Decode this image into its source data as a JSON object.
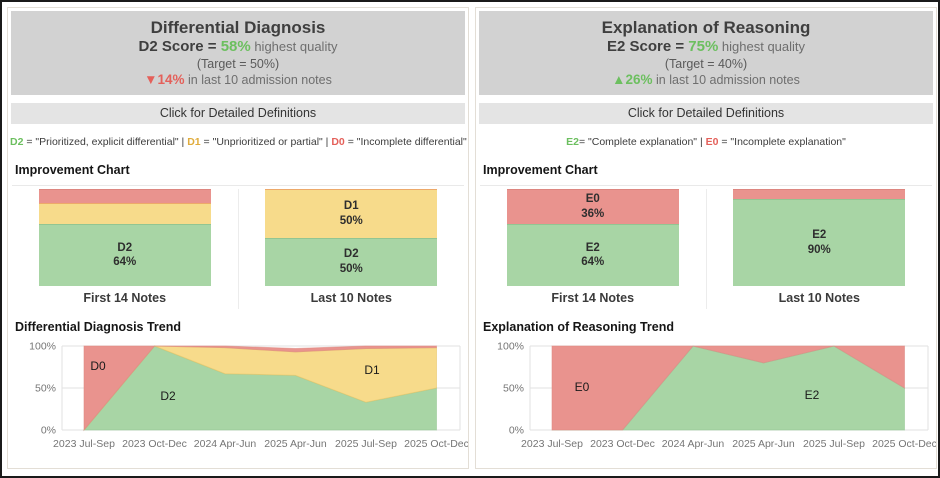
{
  "colors": {
    "green_fill": "#a8d5a5",
    "yellow_fill": "#f7db8b",
    "red_fill": "#e9938e",
    "green_text": "#6cbf5f",
    "gold_text": "#e0ac3c",
    "red_text": "#e4605a",
    "header_bg": "#d2d2d2",
    "button_bg": "#e4e4e4"
  },
  "panels": [
    {
      "header": {
        "title": "Differential Diagnosis",
        "score_label": "D2 Score = ",
        "score_value": "58%",
        "score_value_color": "#6cbf5f",
        "score_note": " highest quality",
        "target": "(Target = 50%)",
        "delta_arrow": "▼",
        "delta_value": "14%",
        "delta_color": "#e4605a",
        "delta_note": " in last 10 admission notes"
      },
      "definitions_button": "Click for Detailed Definitions",
      "definition_parts": [
        {
          "text": "D2",
          "color": "#6cbf5f"
        },
        {
          "text": " = \"Prioritized, explicit differential\"  | ",
          "color": "#3c3c3c"
        },
        {
          "text": "D1",
          "color": "#e0ac3c"
        },
        {
          "text": " = \"Unprioritized or partial\" | ",
          "color": "#3c3c3c"
        },
        {
          "text": "D0",
          "color": "#e4605a"
        },
        {
          "text": " = \"Incomplete differential\"",
          "color": "#3c3c3c"
        }
      ],
      "improvement_title": "Improvement Chart",
      "trend_title": "Differential Diagnosis Trend"
    },
    {
      "header": {
        "title": "Explanation of Reasoning",
        "score_label": "E2 Score = ",
        "score_value": "75%",
        "score_value_color": "#6cbf5f",
        "score_note": " highest quality",
        "target": "(Target = 40%)",
        "delta_arrow": "▲",
        "delta_value": "26%",
        "delta_color": "#6cbf5f",
        "delta_note": " in last 10 admission notes"
      },
      "definitions_button": "Click for Detailed Definitions",
      "definition_parts": [
        {
          "text": "E2",
          "color": "#6cbf5f"
        },
        {
          "text": "= \"Complete explanation\" | ",
          "color": "#3c3c3c"
        },
        {
          "text": "E0",
          "color": "#e4605a"
        },
        {
          "text": " = \"Incomplete explanation\"",
          "color": "#3c3c3c"
        }
      ],
      "improvement_title": "Improvement Chart",
      "trend_title": "Explanation of Reasoning Trend"
    }
  ],
  "chart_data": [
    {
      "id": "dd-improvement",
      "type": "bar",
      "stacked": true,
      "unit": "%",
      "categories": [
        "First 14 Notes",
        "Last 10 Notes"
      ],
      "series": [
        {
          "name": "D2",
          "color": "#a8d5a5",
          "edge": "#92c592",
          "values": [
            64,
            50
          ],
          "show_labels": [
            true,
            true
          ]
        },
        {
          "name": "D1",
          "color": "#f7db8b",
          "edge": "#eda96a",
          "values": [
            22,
            50
          ],
          "show_labels": [
            false,
            true
          ]
        },
        {
          "name": "D0",
          "color": "#e9938e",
          "edge": "#dd8680",
          "values": [
            14,
            0
          ],
          "show_labels": [
            false,
            false
          ]
        }
      ]
    },
    {
      "id": "dd-trend",
      "type": "area",
      "stacked": true,
      "title": "Differential Diagnosis Trend",
      "categories": [
        "2023 Jul-Sep",
        "2023 Oct-Dec",
        "2024 Apr-Jun",
        "2025 Apr-Jun",
        "2025 Jul-Sep",
        "2025 Oct-Dec"
      ],
      "ylim": [
        0,
        100
      ],
      "yticks": [
        "0%",
        "50%",
        "100%"
      ],
      "grid": true,
      "series": [
        {
          "name": "D2",
          "color": "#a8d5a5",
          "edge": "#92c592",
          "values": [
            0,
            100,
            67,
            65,
            33,
            50
          ]
        },
        {
          "name": "D1",
          "color": "#f7db8b",
          "edge": "#e8c260",
          "values": [
            0,
            0,
            31,
            28,
            64,
            48
          ]
        },
        {
          "name": "D0",
          "color": "#e9938e",
          "edge": "#dd8680",
          "values": [
            100,
            0,
            2,
            4,
            3,
            2
          ]
        }
      ],
      "annotations": [
        {
          "text": "D0",
          "x": 88,
          "y": 32
        },
        {
          "text": "D2",
          "x": 158,
          "y": 62
        },
        {
          "text": "D1",
          "x": 362,
          "y": 36
        }
      ]
    },
    {
      "id": "er-improvement",
      "type": "bar",
      "stacked": true,
      "unit": "%",
      "categories": [
        "First 14 Notes",
        "Last 10 Notes"
      ],
      "series": [
        {
          "name": "E2",
          "color": "#a8d5a5",
          "edge": "#92c592",
          "values": [
            64,
            90
          ],
          "show_labels": [
            true,
            true
          ]
        },
        {
          "name": "E0",
          "color": "#e9938e",
          "edge": "#dd8680",
          "values": [
            36,
            10
          ],
          "show_labels": [
            true,
            false
          ]
        }
      ]
    },
    {
      "id": "er-trend",
      "type": "area",
      "stacked": true,
      "title": "Explanation of Reasoning Trend",
      "categories": [
        "2023 Jul-Sep",
        "2023 Oct-Dec",
        "2024 Apr-Jun",
        "2025 Apr-Jun",
        "2025 Jul-Sep",
        "2025 Oct-Dec"
      ],
      "ylim": [
        0,
        100
      ],
      "yticks": [
        "0%",
        "50%",
        "100%"
      ],
      "grid": true,
      "series": [
        {
          "name": "E2",
          "color": "#a8d5a5",
          "edge": "#92c592",
          "values": [
            0,
            0,
            100,
            80,
            100,
            50
          ]
        },
        {
          "name": "E0",
          "color": "#e9938e",
          "edge": "#dd8680",
          "values": [
            100,
            100,
            0,
            20,
            0,
            50
          ]
        }
      ],
      "annotations": [
        {
          "text": "E0",
          "x": 104,
          "y": 53
        },
        {
          "text": "E2",
          "x": 334,
          "y": 61
        }
      ]
    }
  ]
}
